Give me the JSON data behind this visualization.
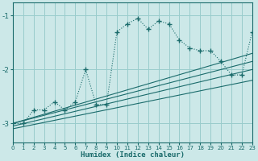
{
  "background_color": "#cce8e8",
  "grid_color": "#99cccc",
  "line_color": "#1a6b6b",
  "xlabel": "Humidex (Indice chaleur)",
  "xlim": [
    0,
    23
  ],
  "ylim": [
    -3.35,
    -0.75
  ],
  "yticks": [
    -3,
    -2,
    -1
  ],
  "xticks": [
    0,
    1,
    2,
    3,
    4,
    5,
    6,
    7,
    8,
    9,
    10,
    11,
    12,
    13,
    14,
    15,
    16,
    17,
    18,
    19,
    20,
    21,
    22,
    23
  ],
  "curve1_x": [
    0,
    1,
    2,
    3,
    4,
    5,
    6,
    7,
    8,
    9,
    10,
    11,
    12,
    13,
    14,
    15,
    16,
    17,
    18,
    19,
    20,
    21,
    22,
    23
  ],
  "curve1_y": [
    -3.0,
    -3.0,
    -2.75,
    -2.75,
    -2.6,
    -2.75,
    -2.6,
    -2.0,
    -2.65,
    -2.65,
    -1.3,
    -1.15,
    -1.05,
    -1.25,
    -1.1,
    -1.15,
    -1.45,
    -1.6,
    -1.65,
    -1.65,
    -1.85,
    -2.1,
    -2.1,
    -1.3
  ],
  "line1_x": [
    0,
    23
  ],
  "line1_y": [
    -3.0,
    -1.7
  ],
  "line2_x": [
    0,
    23
  ],
  "line2_y": [
    -3.0,
    -1.85
  ],
  "line3_x": [
    0,
    23
  ],
  "line3_y": [
    -3.05,
    -2.0
  ],
  "line4_x": [
    0,
    23
  ],
  "line4_y": [
    -3.1,
    -2.2
  ]
}
